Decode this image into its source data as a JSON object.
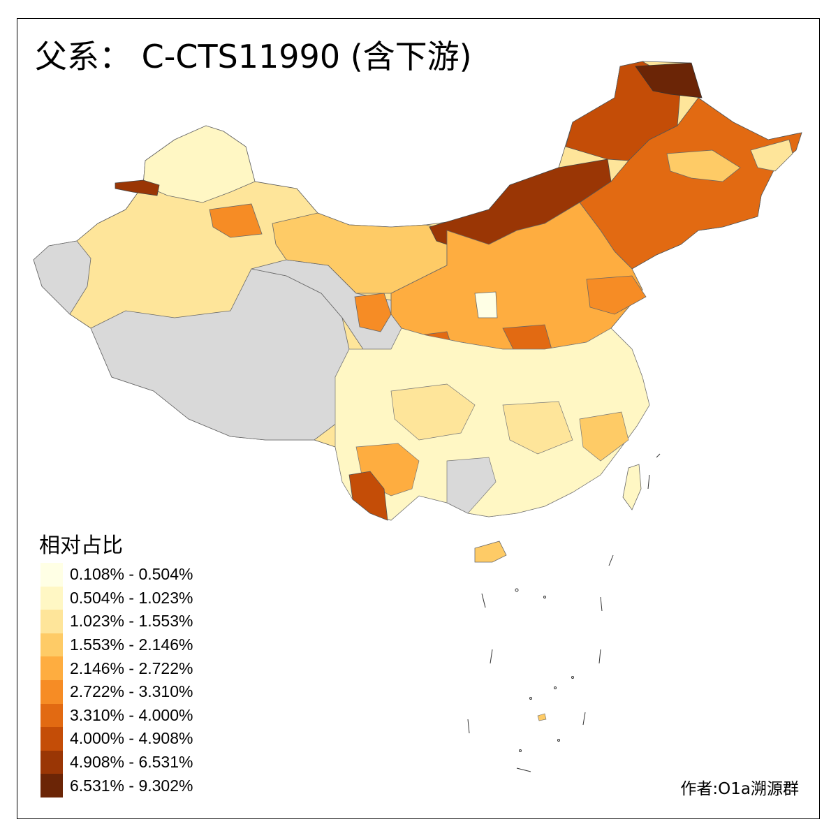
{
  "title": "父系： C-CTS11990 (含下游)",
  "legend": {
    "title": "相对占比",
    "items": [
      {
        "label": "0.108% - 0.504%",
        "color": "#FFFFE5"
      },
      {
        "label": "0.504% - 1.023%",
        "color": "#FFF7C4"
      },
      {
        "label": "1.023% - 1.553%",
        "color": "#FEE59A"
      },
      {
        "label": "1.553% - 2.146%",
        "color": "#FECB66"
      },
      {
        "label": "2.146% - 2.722%",
        "color": "#FEAD40"
      },
      {
        "label": "2.722% - 3.310%",
        "color": "#F68C25"
      },
      {
        "label": "3.310% - 4.000%",
        "color": "#E26A12"
      },
      {
        "label": "4.000% - 4.908%",
        "color": "#C44D07"
      },
      {
        "label": "4.908% - 6.531%",
        "color": "#9A3605"
      },
      {
        "label": "6.531% - 9.302%",
        "color": "#6B2506"
      }
    ]
  },
  "no_data_color": "#D9D9D9",
  "author": "作者:O1a溯源群"
}
